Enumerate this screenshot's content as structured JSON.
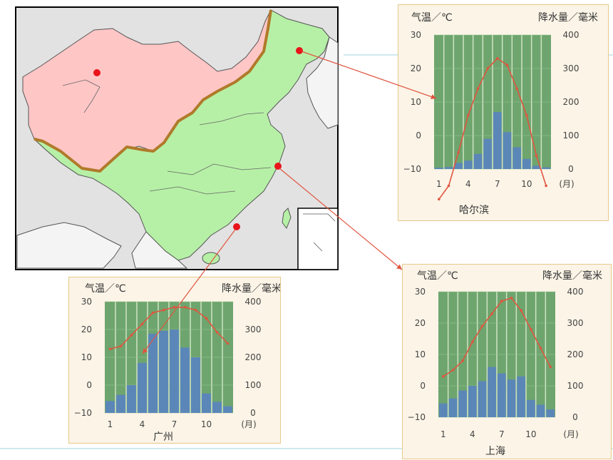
{
  "colors": {
    "temperature_line": "#e0553f",
    "precipitation_bar": "#5b87b8",
    "plot_bg": "#6ea56e",
    "card_bg": "#fbf4e7",
    "card_border": "#e8c98a",
    "region_north": "#ffc6c6",
    "region_south": "#b6f0a6",
    "boundary": "#b07a2a",
    "city_dot": "#e8141a"
  },
  "chart_data": [
    {
      "type": "bar",
      "city": "哈尔滨",
      "temp_label": "气温／℃",
      "precip_label": "降水量／毫米",
      "month_label": "(月)",
      "x_ticks": [
        "1",
        "4",
        "7",
        "10"
      ],
      "temp_ticks": [
        "30",
        "20",
        "10",
        "0",
        "−10"
      ],
      "precip_ticks": [
        "400",
        "300",
        "200",
        "100",
        "0"
      ],
      "temp_ylim": [
        -10,
        30
      ],
      "precip_ylim": [
        0,
        400
      ],
      "months": [
        1,
        2,
        3,
        4,
        5,
        6,
        7,
        8,
        9,
        10,
        11,
        12
      ],
      "precipitation": [
        4,
        6,
        18,
        25,
        45,
        90,
        170,
        110,
        65,
        30,
        10,
        5
      ],
      "temperature": [
        -19,
        -15,
        -5,
        6,
        14,
        20,
        23,
        21,
        14,
        6,
        -6,
        -15
      ]
    },
    {
      "type": "bar",
      "city": "广州",
      "temp_label": "气温／℃",
      "precip_label": "降水量／毫米",
      "month_label": "(月)",
      "x_ticks": [
        "1",
        "4",
        "7",
        "10"
      ],
      "temp_ticks": [
        "30",
        "20",
        "10",
        "0",
        "−10"
      ],
      "precip_ticks": [
        "400",
        "300",
        "200",
        "100",
        "0"
      ],
      "temp_ylim": [
        -10,
        30
      ],
      "precip_ylim": [
        0,
        400
      ],
      "months": [
        1,
        2,
        3,
        4,
        5,
        6,
        7,
        8,
        9,
        10,
        11,
        12
      ],
      "precipitation": [
        43,
        65,
        100,
        180,
        285,
        295,
        300,
        235,
        200,
        70,
        40,
        24
      ],
      "temperature": [
        13,
        14,
        18,
        22,
        26,
        27,
        28,
        28,
        27,
        24,
        19,
        15
      ]
    },
    {
      "type": "bar",
      "city": "上海",
      "temp_label": "气温／℃",
      "precip_label": "降水量／毫米",
      "month_label": "(月)",
      "x_ticks": [
        "1",
        "4",
        "7",
        "10"
      ],
      "temp_ticks": [
        "30",
        "20",
        "10",
        "0",
        "−10"
      ],
      "precip_ticks": [
        "400",
        "300",
        "200",
        "100",
        "0"
      ],
      "temp_ylim": [
        -10,
        30
      ],
      "precip_ylim": [
        0,
        400
      ],
      "months": [
        1,
        2,
        3,
        4,
        5,
        6,
        7,
        8,
        9,
        10,
        11,
        12
      ],
      "precipitation": [
        44,
        60,
        85,
        100,
        115,
        160,
        140,
        120,
        130,
        55,
        40,
        25
      ],
      "temperature": [
        3,
        5,
        8,
        14,
        19,
        23,
        27,
        28,
        24,
        18,
        12,
        6
      ]
    }
  ]
}
